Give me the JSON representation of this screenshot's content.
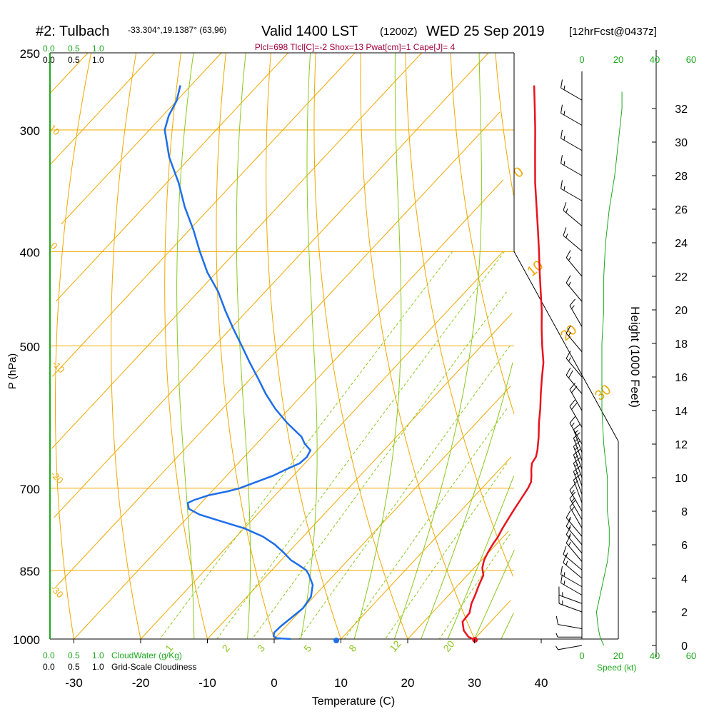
{
  "header": {
    "station": "#2: Tulbach",
    "coords": "-33.304°,19.1387° (63,96)",
    "valid": "Valid 1400 LST",
    "zulu": "(1200Z)",
    "date": "WED 25 Sep 2019",
    "forecast": "[12hrFcst@0437z]"
  },
  "indices": "Plcl=698 Tlcl[C]=-2 Shox=13 Pwat[cm]=1 Cape[J]= 4",
  "legend": {
    "cloudwater_scale": [
      "0.0",
      "0.5",
      "1.0"
    ],
    "cloudiness_scale": [
      "0.0",
      "0.5",
      "1.0"
    ],
    "cloudwater_label": "CloudWater (g/Kg)",
    "cloudiness_label": "Grid-Scale Cloudiness",
    "speed_label": "Speed (kt)"
  },
  "colors": {
    "temperature": "#e8141e",
    "dewpoint": "#1e6ee8",
    "isotherm": "#f0a800",
    "dry_adiabat": "#f0a800",
    "moist_adiabat": "#8cc81e",
    "mixing_ratio": "#8cc81e",
    "green_text": "#1ea81e",
    "indices_text": "#a0003c"
  },
  "chart_data": {
    "type": "skew-t",
    "xlabel": "Temperature (C)",
    "ylabel": "P (hPa)",
    "y2label": "Height (1000 Feet)",
    "x_ticks": [
      -30,
      -20,
      -10,
      0,
      10,
      20,
      30,
      40
    ],
    "pressure_ticks": [
      250,
      300,
      400,
      500,
      700,
      850,
      1000
    ],
    "height_ticks": [
      0,
      2,
      4,
      6,
      8,
      10,
      12,
      14,
      16,
      18,
      20,
      22,
      24,
      26,
      28,
      30,
      32
    ],
    "speed_ticks": [
      0,
      20,
      40,
      60
    ],
    "dry_adiabat_labels": [
      "10",
      "0",
      "-10",
      "-20",
      "-30",
      "0",
      "10",
      "20",
      "30"
    ],
    "mixing_ratio_labels": [
      "1",
      "2",
      "3",
      "5",
      "8",
      "12",
      "20"
    ],
    "temperature": {
      "pressure": [
        1002,
        995,
        980,
        960,
        940,
        920,
        900,
        880,
        860,
        845,
        830,
        815,
        800,
        785,
        770,
        755,
        740,
        720,
        700,
        690,
        680,
        670,
        660,
        650,
        640,
        620,
        600,
        580,
        560,
        540,
        520,
        500,
        480,
        460,
        440,
        420,
        400,
        380,
        360,
        340,
        320,
        300,
        285,
        270
      ],
      "values": [
        30.2,
        28.8,
        27.2,
        25.8,
        25.6,
        24.6,
        23.9,
        23.1,
        22.4,
        21.2,
        20.4,
        19.9,
        19.5,
        19.2,
        18.7,
        18.3,
        17.9,
        17.4,
        16.9,
        16.5,
        15.7,
        14.8,
        14.0,
        13.7,
        13.0,
        11.3,
        9.4,
        7.6,
        5.6,
        3.6,
        1.6,
        -0.9,
        -3.4,
        -5.9,
        -8.7,
        -11.6,
        -14.6,
        -17.8,
        -21.2,
        -24.8,
        -28.4,
        -32.2,
        -35.3,
        -38.6
      ]
    },
    "dewpoint": {
      "pressure": [
        1000,
        998,
        993,
        985,
        970,
        950,
        930,
        905,
        880,
        860,
        850,
        840,
        830,
        815,
        800,
        785,
        770,
        755,
        745,
        735,
        725,
        720,
        712,
        705,
        700,
        690,
        680,
        670,
        660,
        650,
        640,
        630,
        620,
        600,
        580,
        560,
        540,
        520,
        500,
        480,
        460,
        440,
        420,
        400,
        380,
        360,
        340,
        320,
        300,
        290,
        280,
        270
      ],
      "values": [
        2.5,
        0.2,
        -0.5,
        -0.9,
        -0.8,
        -0.4,
        0.0,
        -0.4,
        -1.8,
        -3.7,
        -4.8,
        -6.6,
        -8.5,
        -10.7,
        -13.1,
        -16.0,
        -19.9,
        -25.1,
        -28.6,
        -31.0,
        -32.0,
        -31.5,
        -30.0,
        -27.6,
        -26.3,
        -24.7,
        -23.1,
        -22.0,
        -20.8,
        -20.6,
        -21.0,
        -22.8,
        -24.2,
        -28.3,
        -32.1,
        -35.6,
        -38.9,
        -42.4,
        -45.9,
        -49.6,
        -53.3,
        -57.0,
        -61.4,
        -65.4,
        -69.4,
        -73.9,
        -78.2,
        -83.2,
        -87.7,
        -89.1,
        -90.0,
        -91.6
      ]
    },
    "wind_speed": {
      "height_kft": [
        0.0,
        0.5,
        1.0,
        2.0,
        3.0,
        4.0,
        5.0,
        6.0,
        7.0,
        8.0,
        9.0,
        10.0,
        11.0,
        12.0,
        14.0,
        16.0,
        18.0,
        20.0,
        22.0,
        24.0,
        26.0,
        28.0,
        30.0,
        32.0,
        33.0
      ],
      "values": [
        12,
        10,
        9,
        8,
        10,
        12,
        14,
        15,
        15,
        14,
        14,
        14,
        13,
        12,
        11,
        11,
        11,
        12,
        12,
        13,
        15,
        18,
        20,
        22,
        22
      ]
    },
    "barbs": {
      "height_kft": [
        32.5,
        31,
        29.5,
        28,
        26.5,
        25,
        23.5,
        22,
        20.5,
        19,
        17.5,
        16,
        15,
        14,
        13,
        12,
        11.5,
        11,
        10.5,
        10,
        9.5,
        9,
        8.5,
        8,
        7.5,
        7,
        6.5,
        6,
        5.5,
        5,
        4.5,
        4,
        3.5,
        3,
        2.5,
        2,
        1,
        0.5,
        0
      ],
      "speed": [
        15,
        15,
        15,
        15,
        15,
        15,
        15,
        15,
        15,
        15,
        15,
        15,
        20,
        20,
        20,
        15,
        15,
        15,
        15,
        15,
        15,
        15,
        15,
        15,
        15,
        15,
        15,
        15,
        15,
        15,
        15,
        15,
        15,
        15,
        15,
        15,
        10,
        5,
        5
      ],
      "direction": [
        300,
        300,
        300,
        300,
        300,
        310,
        310,
        320,
        320,
        330,
        320,
        320,
        320,
        330,
        330,
        330,
        340,
        340,
        340,
        340,
        340,
        340,
        340,
        330,
        330,
        330,
        320,
        320,
        320,
        320,
        310,
        310,
        300,
        300,
        290,
        290,
        280,
        270,
        260
      ]
    }
  }
}
